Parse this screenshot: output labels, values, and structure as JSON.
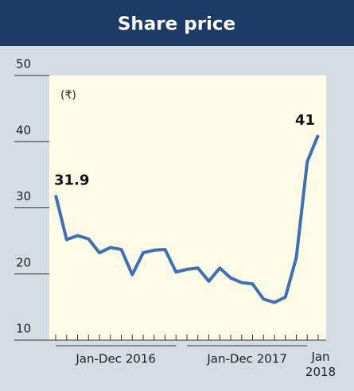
{
  "chart_data": {
    "type": "line",
    "title": "Share price",
    "unit_label": "(₹)",
    "categories": [
      null,
      null,
      null,
      null,
      null,
      null,
      null,
      null,
      null,
      null,
      null,
      null,
      null,
      null,
      null,
      null,
      null,
      null,
      null,
      null,
      null,
      null,
      null,
      null,
      null
    ],
    "values": [
      31.9,
      25.2,
      25.8,
      25.3,
      23.2,
      24,
      23.7,
      19.9,
      23.2,
      23.6,
      23.7,
      20.3,
      20.7,
      20.9,
      18.9,
      20.9,
      19.4,
      18.7,
      18.5,
      16.2,
      15.7,
      16.5,
      22.5,
      37,
      41
    ],
    "color": "#3d70b8",
    "ylim": [
      10,
      50
    ],
    "yticks": [
      10,
      20,
      30,
      40,
      50
    ],
    "period_labels": [
      "Jan-Dec 2016",
      "Jan-Dec 2017",
      "Jan 2018"
    ]
  }
}
